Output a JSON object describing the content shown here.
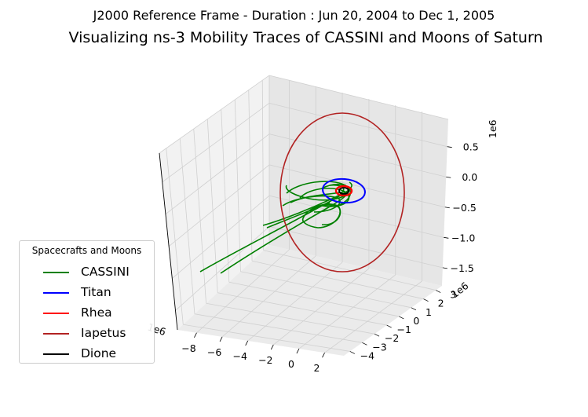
{
  "figure": {
    "suptitle": "J2000 Reference Frame - Duration : Jun 20, 2004 to Dec 1, 2005",
    "title": "Visualizing ns-3 Mobility Traces of CASSINI and Moons of Saturn"
  },
  "chart_data": {
    "type": "line",
    "projection": "3d",
    "grid": true,
    "x_axis": {
      "ticks": [
        "−8",
        "−6",
        "−4",
        "−2",
        "0",
        "2"
      ],
      "offset_label": "1e6",
      "range": [
        -9.5,
        3.5
      ]
    },
    "y_axis": {
      "ticks": [
        "−4",
        "−3",
        "−2",
        "−1",
        "0",
        "1",
        "2",
        "3"
      ],
      "offset_label": "1e6",
      "range": [
        -4.5,
        3.5
      ]
    },
    "z_axis": {
      "ticks": [
        "−1.5",
        "−1.0",
        "−0.5",
        "0.0",
        "0.5"
      ],
      "offset_label": "1e6",
      "range": [
        -1.8,
        0.95
      ]
    },
    "legend": {
      "title": "Spacecrafts and Moons",
      "placement": "lower-left",
      "items": [
        {
          "label": "CASSINI",
          "color": "#008000"
        },
        {
          "label": "Titan",
          "color": "#0000ff"
        },
        {
          "label": "Rhea",
          "color": "#ff0000"
        },
        {
          "label": "Iapetus",
          "color": "#b22222"
        },
        {
          "label": "Dione",
          "color": "#000000"
        }
      ]
    },
    "series": [
      {
        "name": "CASSINI",
        "color": "#008000",
        "description_points": "trajectory looping around Saturn with long outbound arcs to x ≈ −8e6"
      },
      {
        "name": "Titan",
        "color": "#0000ff",
        "radius": 1200000.0
      },
      {
        "name": "Rhea",
        "color": "#ff0000",
        "radius": 530000.0
      },
      {
        "name": "Iapetus",
        "color": "#b22222",
        "radius": 3560000.0
      },
      {
        "name": "Dione",
        "color": "#000000",
        "radius": 380000.0
      }
    ]
  }
}
